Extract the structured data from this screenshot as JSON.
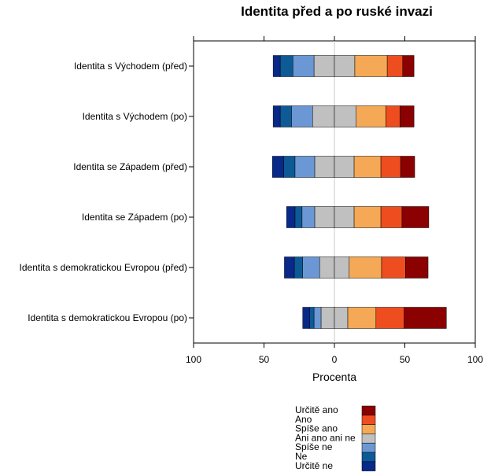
{
  "chart_data": {
    "type": "bar",
    "subtype": "diverging-stacked-horizontal",
    "title": "Identita před a po ruské invazi",
    "xlabel": "Procenta",
    "xlim": [
      -100,
      100
    ],
    "xticks": [
      -100,
      -50,
      0,
      50,
      100
    ],
    "xtick_labels": [
      "100",
      "50",
      "0",
      "50",
      "100"
    ],
    "categories": [
      "Identita s Východem (před)",
      "Identita s Východem (po)",
      "Identita se Západem (před)",
      "Identita se Západem (po)",
      "Identita s demokratickou Evropou (před)",
      "Identita s demokratickou Evropou (po)"
    ],
    "legend_position": "bottom-right",
    "series": [
      {
        "name": "Určitě ne",
        "color": "#08298a",
        "side": "negative",
        "values": [
          5,
          5,
          8,
          6,
          7,
          5
        ]
      },
      {
        "name": "Ne",
        "color": "#0d5a96",
        "side": "negative",
        "values": [
          9,
          8,
          8,
          5,
          6,
          3
        ]
      },
      {
        "name": "Spíše ne",
        "color": "#6b98d4",
        "side": "negative",
        "values": [
          15,
          15,
          14,
          9,
          12,
          5
        ]
      },
      {
        "name": "Ani ano ani ne",
        "color": "#c0c0c0",
        "side": "split",
        "values": [
          29,
          31,
          28,
          28,
          21,
          19
        ]
      },
      {
        "name": "Spíše ano",
        "color": "#f5a855",
        "side": "positive",
        "values": [
          23,
          21,
          19,
          19,
          23,
          20
        ]
      },
      {
        "name": "Ano",
        "color": "#ee4e1f",
        "side": "positive",
        "values": [
          11,
          10,
          14,
          15,
          17,
          20
        ]
      },
      {
        "name": "Určitě ano",
        "color": "#8b0000",
        "side": "positive",
        "values": [
          8,
          10,
          10,
          19,
          16,
          30
        ]
      }
    ]
  }
}
